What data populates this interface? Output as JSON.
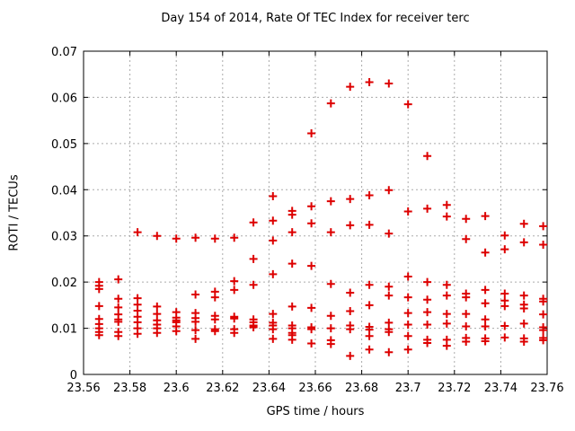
{
  "chart_data": {
    "type": "scatter",
    "title": "Day 154 of 2014, Rate Of TEC Index for receiver terc",
    "xlabel": "GPS time / hours",
    "ylabel": "ROTI / TECUs",
    "xlim": [
      23.56,
      23.76
    ],
    "ylim": [
      0,
      0.07
    ],
    "x_ticks": [
      23.56,
      23.58,
      23.6,
      23.62,
      23.64,
      23.66,
      23.68,
      23.7,
      23.72,
      23.74,
      23.76
    ],
    "x_tick_labels": [
      "23.56",
      "23.58",
      "23.6",
      "23.62",
      "23.64",
      "23.66",
      "23.68",
      "23.7",
      "23.72",
      "23.74",
      "23.76"
    ],
    "y_ticks": [
      0,
      0.01,
      0.02,
      0.03,
      0.04,
      0.05,
      0.06,
      0.07
    ],
    "y_tick_labels": [
      "0",
      "0.01",
      "0.02",
      "0.03",
      "0.04",
      "0.05",
      "0.06",
      "0.07"
    ],
    "grid": true,
    "grid_color": "#aaaaaa",
    "legend": "none",
    "marker": {
      "shape": "plus",
      "color": "#dd0000",
      "size": 9
    },
    "series": [
      {
        "name": "ROTI",
        "points": [
          [
            23.5667,
            0.02
          ],
          [
            23.5667,
            0.0192
          ],
          [
            23.5667,
            0.0185
          ],
          [
            23.5667,
            0.0148
          ],
          [
            23.5667,
            0.012
          ],
          [
            23.5667,
            0.0109
          ],
          [
            23.5667,
            0.01
          ],
          [
            23.5667,
            0.0092
          ],
          [
            23.5667,
            0.0085
          ],
          [
            23.575,
            0.0206
          ],
          [
            23.575,
            0.0164
          ],
          [
            23.575,
            0.0145
          ],
          [
            23.575,
            0.013
          ],
          [
            23.575,
            0.0119
          ],
          [
            23.575,
            0.0114
          ],
          [
            23.575,
            0.0092
          ],
          [
            23.575,
            0.0083
          ],
          [
            23.5833,
            0.0308
          ],
          [
            23.5833,
            0.0165
          ],
          [
            23.5833,
            0.0151
          ],
          [
            23.5833,
            0.0138
          ],
          [
            23.5833,
            0.0125
          ],
          [
            23.5833,
            0.0113
          ],
          [
            23.5833,
            0.01
          ],
          [
            23.5833,
            0.0088
          ],
          [
            23.5917,
            0.03
          ],
          [
            23.5917,
            0.0147
          ],
          [
            23.5917,
            0.0131
          ],
          [
            23.5917,
            0.0117
          ],
          [
            23.5917,
            0.0108
          ],
          [
            23.5917,
            0.01
          ],
          [
            23.5917,
            0.009
          ],
          [
            23.6,
            0.0294
          ],
          [
            23.6,
            0.0135
          ],
          [
            23.6,
            0.0123
          ],
          [
            23.6,
            0.0117
          ],
          [
            23.6,
            0.0113
          ],
          [
            23.6,
            0.0104
          ],
          [
            23.6,
            0.0094
          ],
          [
            23.6083,
            0.0296
          ],
          [
            23.6083,
            0.0173
          ],
          [
            23.6083,
            0.0133
          ],
          [
            23.6083,
            0.0122
          ],
          [
            23.6083,
            0.0114
          ],
          [
            23.6083,
            0.0096
          ],
          [
            23.6083,
            0.0077
          ],
          [
            23.6167,
            0.0294
          ],
          [
            23.6167,
            0.0179
          ],
          [
            23.6167,
            0.0167
          ],
          [
            23.6167,
            0.0127
          ],
          [
            23.6167,
            0.0119
          ],
          [
            23.6167,
            0.0098
          ],
          [
            23.6167,
            0.0094
          ],
          [
            23.625,
            0.0296
          ],
          [
            23.625,
            0.0202
          ],
          [
            23.625,
            0.0183
          ],
          [
            23.625,
            0.0125
          ],
          [
            23.625,
            0.0121
          ],
          [
            23.625,
            0.0098
          ],
          [
            23.625,
            0.009
          ],
          [
            23.6333,
            0.0329
          ],
          [
            23.6333,
            0.025
          ],
          [
            23.6333,
            0.0194
          ],
          [
            23.6333,
            0.0119
          ],
          [
            23.6333,
            0.0113
          ],
          [
            23.6333,
            0.0106
          ],
          [
            23.6333,
            0.0102
          ],
          [
            23.6417,
            0.0386
          ],
          [
            23.6417,
            0.0333
          ],
          [
            23.6417,
            0.029
          ],
          [
            23.6417,
            0.0217
          ],
          [
            23.6417,
            0.0131
          ],
          [
            23.6417,
            0.0112
          ],
          [
            23.6417,
            0.0106
          ],
          [
            23.6417,
            0.0098
          ],
          [
            23.6417,
            0.0077
          ],
          [
            23.65,
            0.0354
          ],
          [
            23.65,
            0.0346
          ],
          [
            23.65,
            0.0308
          ],
          [
            23.65,
            0.024
          ],
          [
            23.65,
            0.0147
          ],
          [
            23.65,
            0.0106
          ],
          [
            23.65,
            0.01
          ],
          [
            23.65,
            0.009
          ],
          [
            23.65,
            0.0085
          ],
          [
            23.65,
            0.0075
          ],
          [
            23.6583,
            0.0522
          ],
          [
            23.6583,
            0.0364
          ],
          [
            23.6583,
            0.0327
          ],
          [
            23.6583,
            0.0235
          ],
          [
            23.6583,
            0.0144
          ],
          [
            23.6583,
            0.0102
          ],
          [
            23.6583,
            0.0098
          ],
          [
            23.6583,
            0.0067
          ],
          [
            23.6667,
            0.0587
          ],
          [
            23.6667,
            0.0375
          ],
          [
            23.6667,
            0.0308
          ],
          [
            23.6667,
            0.0196
          ],
          [
            23.6667,
            0.0127
          ],
          [
            23.6667,
            0.01
          ],
          [
            23.6667,
            0.0074
          ],
          [
            23.6667,
            0.0066
          ],
          [
            23.675,
            0.0623
          ],
          [
            23.675,
            0.038
          ],
          [
            23.675,
            0.0323
          ],
          [
            23.675,
            0.0177
          ],
          [
            23.675,
            0.0137
          ],
          [
            23.675,
            0.0106
          ],
          [
            23.675,
            0.0098
          ],
          [
            23.675,
            0.004
          ],
          [
            23.6833,
            0.0633
          ],
          [
            23.6833,
            0.0388
          ],
          [
            23.6833,
            0.0324
          ],
          [
            23.6833,
            0.0194
          ],
          [
            23.6833,
            0.015
          ],
          [
            23.6833,
            0.0103
          ],
          [
            23.6833,
            0.0097
          ],
          [
            23.6833,
            0.0083
          ],
          [
            23.6833,
            0.0054
          ],
          [
            23.6917,
            0.063
          ],
          [
            23.6917,
            0.0399
          ],
          [
            23.6917,
            0.0305
          ],
          [
            23.6917,
            0.019
          ],
          [
            23.6917,
            0.0171
          ],
          [
            23.6917,
            0.0112
          ],
          [
            23.6917,
            0.0098
          ],
          [
            23.6917,
            0.0092
          ],
          [
            23.6917,
            0.0048
          ],
          [
            23.7,
            0.0585
          ],
          [
            23.7,
            0.0353
          ],
          [
            23.7,
            0.0212
          ],
          [
            23.7,
            0.0167
          ],
          [
            23.7,
            0.0133
          ],
          [
            23.7,
            0.0108
          ],
          [
            23.7,
            0.0083
          ],
          [
            23.7,
            0.0054
          ],
          [
            23.7083,
            0.0473
          ],
          [
            23.7083,
            0.0359
          ],
          [
            23.7083,
            0.02
          ],
          [
            23.7083,
            0.0162
          ],
          [
            23.7083,
            0.0135
          ],
          [
            23.7083,
            0.0108
          ],
          [
            23.7083,
            0.0075
          ],
          [
            23.7083,
            0.0068
          ],
          [
            23.7167,
            0.0367
          ],
          [
            23.7167,
            0.0342
          ],
          [
            23.7167,
            0.0194
          ],
          [
            23.7167,
            0.0171
          ],
          [
            23.7167,
            0.0131
          ],
          [
            23.7167,
            0.011
          ],
          [
            23.7167,
            0.0075
          ],
          [
            23.7167,
            0.0062
          ],
          [
            23.725,
            0.0337
          ],
          [
            23.725,
            0.0293
          ],
          [
            23.725,
            0.0175
          ],
          [
            23.725,
            0.0167
          ],
          [
            23.725,
            0.0131
          ],
          [
            23.725,
            0.0104
          ],
          [
            23.725,
            0.0079
          ],
          [
            23.725,
            0.0071
          ],
          [
            23.7333,
            0.0343
          ],
          [
            23.7333,
            0.0264
          ],
          [
            23.7333,
            0.0183
          ],
          [
            23.7333,
            0.0154
          ],
          [
            23.7333,
            0.0119
          ],
          [
            23.7333,
            0.0104
          ],
          [
            23.7333,
            0.0078
          ],
          [
            23.7333,
            0.0072
          ],
          [
            23.7417,
            0.0301
          ],
          [
            23.7417,
            0.0271
          ],
          [
            23.7417,
            0.0175
          ],
          [
            23.7417,
            0.016
          ],
          [
            23.7417,
            0.0148
          ],
          [
            23.7417,
            0.0105
          ],
          [
            23.7417,
            0.008
          ],
          [
            23.75,
            0.0326
          ],
          [
            23.75,
            0.0286
          ],
          [
            23.75,
            0.0171
          ],
          [
            23.75,
            0.0151
          ],
          [
            23.75,
            0.0143
          ],
          [
            23.75,
            0.011
          ],
          [
            23.75,
            0.0078
          ],
          [
            23.75,
            0.0071
          ],
          [
            23.7583,
            0.0321
          ],
          [
            23.7583,
            0.0281
          ],
          [
            23.7583,
            0.0164
          ],
          [
            23.7583,
            0.0158
          ],
          [
            23.7583,
            0.013
          ],
          [
            23.7583,
            0.0102
          ],
          [
            23.7583,
            0.0096
          ],
          [
            23.7583,
            0.0079
          ],
          [
            23.7583,
            0.0074
          ]
        ]
      }
    ]
  }
}
